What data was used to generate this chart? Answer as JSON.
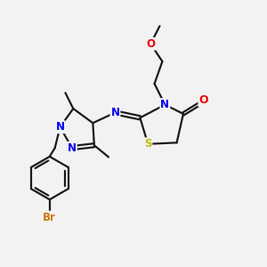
{
  "bg_color": "#f2f2f2",
  "bond_color": "#1a1a1a",
  "N_color": "#0000ee",
  "S_color": "#bbbb00",
  "O_color": "#ee0000",
  "Br_color": "#cc7700",
  "line_width": 1.6,
  "font_size": 8.5,
  "fig_width": 3.0,
  "fig_height": 3.0,
  "dpi": 100,
  "xlim": [
    0,
    10
  ],
  "ylim": [
    0,
    10
  ]
}
